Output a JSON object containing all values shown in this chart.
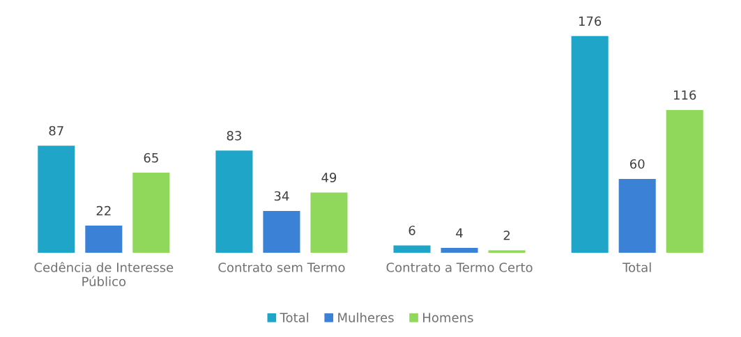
{
  "chart_data": {
    "type": "bar",
    "categories": [
      "Cedência de Interesse\nPúblico",
      "Contrato sem Termo",
      "Contrato a Termo Certo",
      "Total"
    ],
    "series": [
      {
        "name": "Total",
        "color": "#1fa5c8",
        "values": [
          87,
          83,
          6,
          176
        ]
      },
      {
        "name": "Mulheres",
        "color": "#3b82d6",
        "values": [
          22,
          34,
          4,
          60
        ]
      },
      {
        "name": "Homens",
        "color": "#8fd85c",
        "values": [
          65,
          49,
          2,
          116
        ]
      }
    ],
    "data_labels": true,
    "legend": "bottom",
    "grid": false
  }
}
